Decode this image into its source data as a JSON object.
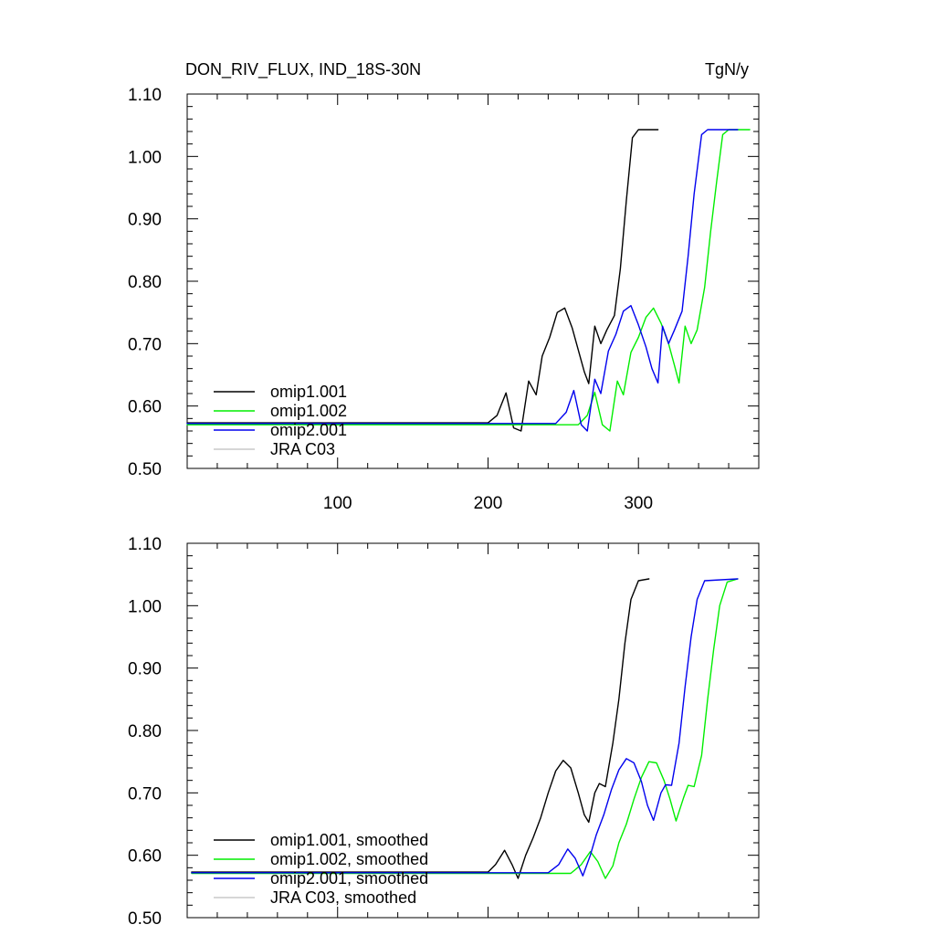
{
  "chart_data": [
    {
      "type": "line",
      "title": "DON_RIV_FLUX, IND_18S-30N",
      "units": "TgN/y",
      "xlim": [
        0,
        380
      ],
      "ylim": [
        0.5,
        1.1
      ],
      "y_ticks": [
        0.5,
        0.6,
        0.7,
        0.8,
        0.9,
        1.0,
        1.1
      ],
      "y_tick_labels": [
        "0.50",
        "0.60",
        "0.70",
        "0.80",
        "0.90",
        "1.00",
        "1.10"
      ],
      "x_ticks": [
        100,
        200,
        300
      ],
      "x_tick_labels": [
        "100",
        "200",
        "300"
      ],
      "legend_position": "bottom-left",
      "series": [
        {
          "name": "omip1.001",
          "color": "#000000",
          "points": [
            [
              0,
              0.573
            ],
            [
              200,
              0.573
            ],
            [
              206,
              0.585
            ],
            [
              212,
              0.621
            ],
            [
              217,
              0.565
            ],
            [
              222,
              0.56
            ],
            [
              227,
              0.64
            ],
            [
              232,
              0.618
            ],
            [
              236,
              0.68
            ],
            [
              241,
              0.71
            ],
            [
              246,
              0.75
            ],
            [
              251,
              0.757
            ],
            [
              256,
              0.725
            ],
            [
              260,
              0.69
            ],
            [
              264,
              0.655
            ],
            [
              267,
              0.636
            ],
            [
              271,
              0.728
            ],
            [
              275,
              0.7
            ],
            [
              279,
              0.722
            ],
            [
              284,
              0.745
            ],
            [
              288,
              0.82
            ],
            [
              292,
              0.93
            ],
            [
              296,
              1.03
            ],
            [
              300,
              1.043
            ],
            [
              313,
              1.043
            ]
          ]
        },
        {
          "name": "omip1.002",
          "color": "#00ee00",
          "points": [
            [
              0,
              0.57
            ],
            [
              260,
              0.57
            ],
            [
              266,
              0.585
            ],
            [
              271,
              0.622
            ],
            [
              276,
              0.57
            ],
            [
              281,
              0.56
            ],
            [
              286,
              0.64
            ],
            [
              290,
              0.618
            ],
            [
              295,
              0.686
            ],
            [
              300,
              0.71
            ],
            [
              305,
              0.742
            ],
            [
              310,
              0.757
            ],
            [
              315,
              0.733
            ],
            [
              320,
              0.7
            ],
            [
              324,
              0.665
            ],
            [
              327,
              0.637
            ],
            [
              331,
              0.728
            ],
            [
              335,
              0.7
            ],
            [
              339,
              0.722
            ],
            [
              344,
              0.79
            ],
            [
              348,
              0.88
            ],
            [
              352,
              0.96
            ],
            [
              356,
              1.035
            ],
            [
              360,
              1.043
            ],
            [
              374,
              1.043
            ]
          ]
        },
        {
          "name": "omip2.001",
          "color": "#0000ee",
          "points": [
            [
              0,
              0.572
            ],
            [
              245,
              0.572
            ],
            [
              252,
              0.59
            ],
            [
              257,
              0.625
            ],
            [
              262,
              0.57
            ],
            [
              266,
              0.56
            ],
            [
              271,
              0.643
            ],
            [
              275,
              0.62
            ],
            [
              280,
              0.688
            ],
            [
              285,
              0.715
            ],
            [
              290,
              0.752
            ],
            [
              295,
              0.761
            ],
            [
              300,
              0.73
            ],
            [
              305,
              0.695
            ],
            [
              309,
              0.66
            ],
            [
              313,
              0.637
            ],
            [
              316,
              0.728
            ],
            [
              320,
              0.7
            ],
            [
              324,
              0.722
            ],
            [
              329,
              0.752
            ],
            [
              333,
              0.84
            ],
            [
              337,
              0.94
            ],
            [
              342,
              1.035
            ],
            [
              346,
              1.043
            ],
            [
              366,
              1.043
            ]
          ]
        },
        {
          "name": "JRA C03",
          "color": "#c8c8c8",
          "points": []
        }
      ]
    },
    {
      "type": "line",
      "title": "",
      "units": "",
      "xlim": [
        0,
        380
      ],
      "ylim": [
        0.5,
        1.1
      ],
      "y_ticks": [
        0.5,
        0.6,
        0.7,
        0.8,
        0.9,
        1.0,
        1.1
      ],
      "y_tick_labels": [
        "0.50",
        "0.60",
        "0.70",
        "0.80",
        "0.90",
        "1.00",
        "1.10"
      ],
      "x_ticks": [
        100,
        200,
        300
      ],
      "x_tick_labels": [],
      "legend_position": "bottom-left",
      "series": [
        {
          "name": "omip1.001, smoothed",
          "color": "#000000",
          "points": [
            [
              3,
              0.573
            ],
            [
              200,
              0.573
            ],
            [
              205,
              0.585
            ],
            [
              211,
              0.608
            ],
            [
              216,
              0.585
            ],
            [
              220,
              0.563
            ],
            [
              225,
              0.6
            ],
            [
              230,
              0.628
            ],
            [
              235,
              0.66
            ],
            [
              240,
              0.7
            ],
            [
              245,
              0.735
            ],
            [
              250,
              0.752
            ],
            [
              255,
              0.74
            ],
            [
              260,
              0.7
            ],
            [
              264,
              0.665
            ],
            [
              267,
              0.653
            ],
            [
              271,
              0.7
            ],
            [
              274,
              0.715
            ],
            [
              278,
              0.71
            ],
            [
              283,
              0.78
            ],
            [
              287,
              0.85
            ],
            [
              291,
              0.94
            ],
            [
              295,
              1.01
            ],
            [
              300,
              1.04
            ],
            [
              307,
              1.043
            ]
          ]
        },
        {
          "name": "omip1.002, smoothed",
          "color": "#00ee00",
          "points": [
            [
              3,
              0.571
            ],
            [
              255,
              0.571
            ],
            [
              262,
              0.585
            ],
            [
              268,
              0.606
            ],
            [
              273,
              0.59
            ],
            [
              278,
              0.563
            ],
            [
              283,
              0.583
            ],
            [
              287,
              0.62
            ],
            [
              292,
              0.65
            ],
            [
              297,
              0.69
            ],
            [
              302,
              0.725
            ],
            [
              307,
              0.75
            ],
            [
              312,
              0.748
            ],
            [
              317,
              0.72
            ],
            [
              321,
              0.69
            ],
            [
              325,
              0.655
            ],
            [
              330,
              0.692
            ],
            [
              333,
              0.712
            ],
            [
              337,
              0.71
            ],
            [
              342,
              0.76
            ],
            [
              346,
              0.85
            ],
            [
              350,
              0.93
            ],
            [
              354,
              1.0
            ],
            [
              359,
              1.038
            ],
            [
              366,
              1.043
            ]
          ]
        },
        {
          "name": "omip2.001, smoothed",
          "color": "#0000ee",
          "points": [
            [
              3,
              0.572
            ],
            [
              240,
              0.572
            ],
            [
              247,
              0.585
            ],
            [
              253,
              0.61
            ],
            [
              258,
              0.595
            ],
            [
              263,
              0.567
            ],
            [
              268,
              0.6
            ],
            [
              272,
              0.633
            ],
            [
              277,
              0.665
            ],
            [
              282,
              0.705
            ],
            [
              287,
              0.737
            ],
            [
              292,
              0.755
            ],
            [
              297,
              0.748
            ],
            [
              302,
              0.718
            ],
            [
              306,
              0.68
            ],
            [
              310,
              0.656
            ],
            [
              315,
              0.7
            ],
            [
              318,
              0.713
            ],
            [
              322,
              0.712
            ],
            [
              327,
              0.78
            ],
            [
              331,
              0.87
            ],
            [
              335,
              0.95
            ],
            [
              339,
              1.01
            ],
            [
              344,
              1.04
            ],
            [
              366,
              1.043
            ]
          ]
        },
        {
          "name": "JRA C03, smoothed",
          "color": "#c8c8c8",
          "points": []
        }
      ]
    }
  ]
}
